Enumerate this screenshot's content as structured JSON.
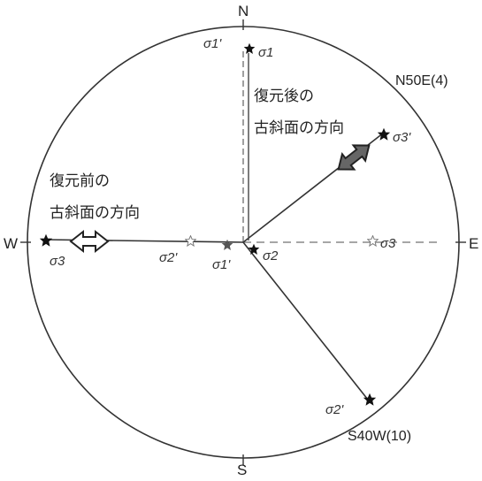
{
  "compass": {
    "north": "N",
    "south": "S",
    "east": "E",
    "west": "W"
  },
  "labels": {
    "after_line1": "復元後の",
    "after_line2": "古斜面の方向",
    "before_line1": "復元前の",
    "before_line2": "古斜面の方向",
    "n50e": "N50E(4)",
    "s40w": "S40W(10)"
  },
  "sigma": {
    "s1p_top": "σ1'",
    "s1_top": "σ1",
    "s3p": "σ3'",
    "s3_west": "σ3",
    "s2p_center": "σ2'",
    "s1p_center": "σ1'",
    "s2_center": "σ2",
    "s3_east": "σ3",
    "s2p_bottom": "σ2'"
  },
  "colors": {
    "line": "#333333",
    "dashed": "#777777",
    "star_filled": "#111111",
    "star_open": "#777777"
  }
}
